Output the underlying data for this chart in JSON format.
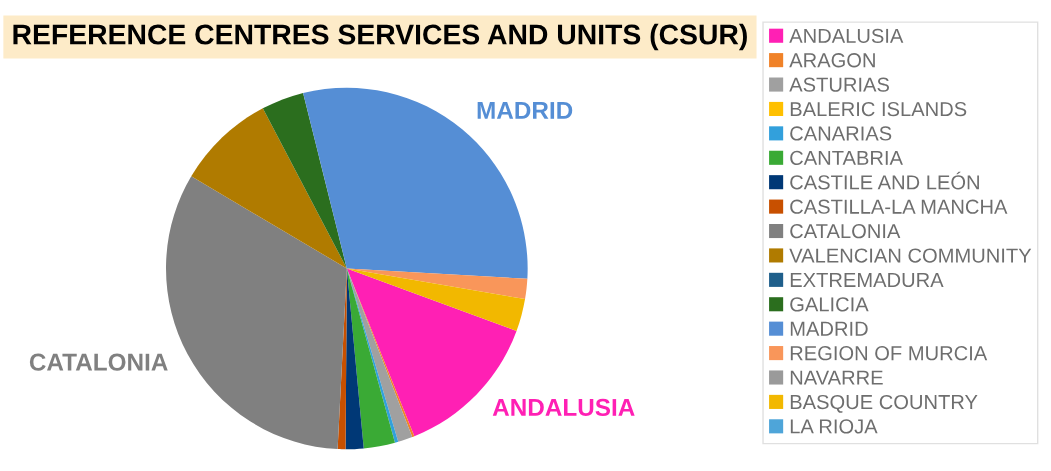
{
  "chart_data": {
    "type": "pie",
    "title": "REFERENCE CENTRES SERVICES AND UNITS (CSUR)",
    "categories": [
      "ANDALUSIA",
      "ARAGON",
      "ASTURIAS",
      "BALERIC ISLANDS",
      "CANARIAS",
      "CANTABRIA",
      "CASTILE AND LEÓN",
      "CASTILLA-LA MANCHA",
      "CATALONIA",
      "VALENCIAN COMMUNITY",
      "EXTREMADURA",
      "GALICIA",
      "MADRID",
      "REGION OF MURCIA",
      "NAVARRE",
      "BASQUE COUNTRY",
      "LA RIOJA"
    ],
    "values": [
      13.3,
      0.2,
      1.3,
      0,
      0.3,
      2.8,
      1.6,
      0.7,
      32.7,
      8.8,
      0,
      3.8,
      29.8,
      1.8,
      0,
      2.9,
      0
    ],
    "colors": [
      "#ff20b4",
      "#f08228",
      "#a0a0a0",
      "#ffc000",
      "#32a0dc",
      "#3aaa35",
      "#003876",
      "#c85000",
      "#808080",
      "#b07b00",
      "#1f5f8b",
      "#2b6e1e",
      "#558ed5",
      "#f9965a",
      "#9a9a9a",
      "#f2b800",
      "#4ea5d9"
    ],
    "value_labels": [
      "ANDALUSIA",
      null,
      null,
      null,
      null,
      null,
      null,
      null,
      "CATALONIA",
      null,
      null,
      null,
      "MADRID",
      null,
      null,
      null,
      null
    ],
    "legend": "right"
  }
}
